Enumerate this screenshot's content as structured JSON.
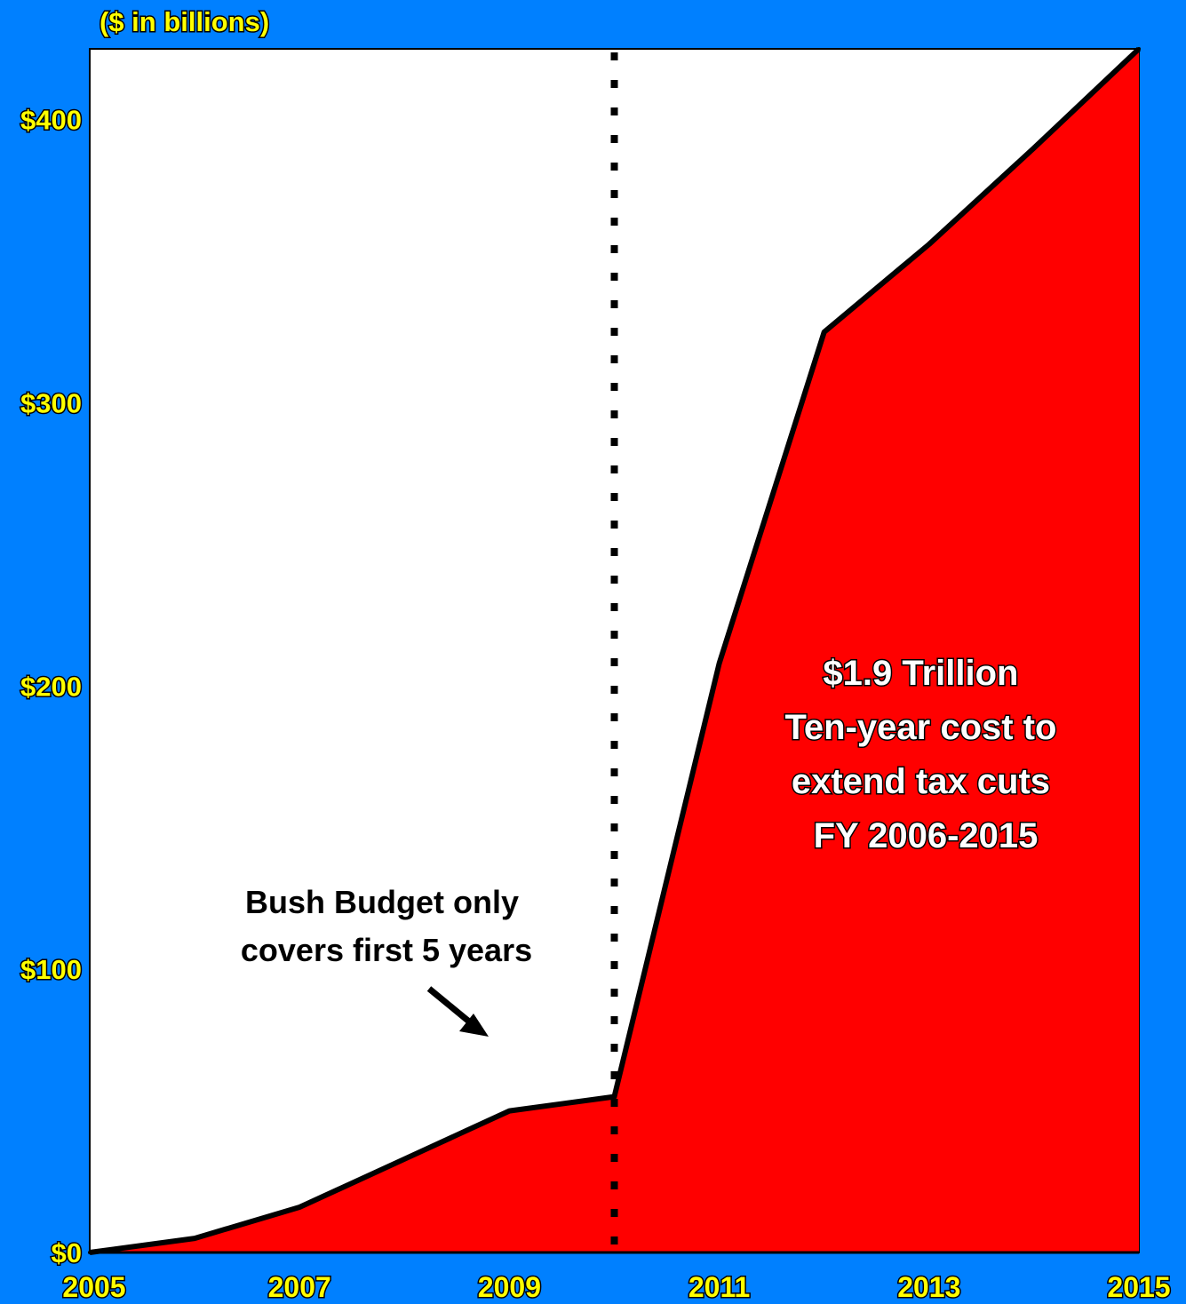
{
  "chart_data": {
    "type": "area",
    "title": "($ in billions)",
    "x": [
      2005,
      2006,
      2007,
      2008,
      2009,
      2010,
      2011,
      2012,
      2013,
      2014,
      2015
    ],
    "values": [
      0,
      5,
      16,
      33,
      50,
      55,
      208,
      325,
      356,
      390,
      425
    ],
    "x_ticks": [
      "2005",
      "2007",
      "2009",
      "2011",
      "2013",
      "2015"
    ],
    "y_ticks": [
      "$0",
      "$100",
      "$200",
      "$300",
      "$400"
    ],
    "xlim": [
      2005,
      2015
    ],
    "ylim": [
      0,
      425
    ],
    "grid": false,
    "fill_color": "#FF0000",
    "line_color": "#000000",
    "background_color": "#0080FF",
    "marker_line": {
      "x": 2010,
      "style": "dotted"
    },
    "annotations": {
      "callout": [
        "$1.9 Trillion",
        "Ten-year cost to",
        "extend tax cuts",
        "FY 2006-2015"
      ],
      "note": [
        "Bush Budget only",
        "covers first 5 years"
      ]
    }
  }
}
